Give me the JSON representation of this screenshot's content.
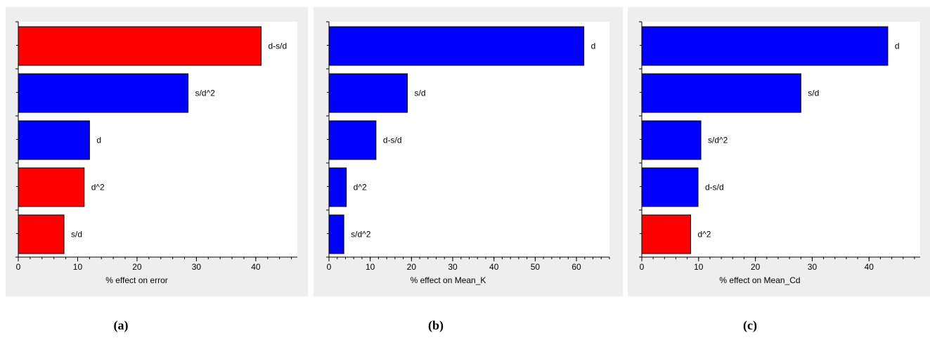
{
  "chart_data": [
    {
      "type": "bar",
      "orientation": "horizontal",
      "xlabel": "% effect on error",
      "xlim": [
        0,
        47
      ],
      "xticks": [
        0,
        10,
        20,
        30,
        40
      ],
      "categories": [
        "d-s/d",
        "s/d^2",
        "d",
        "d^2",
        "s/d"
      ],
      "values": [
        40.9,
        28.6,
        12.0,
        11.1,
        7.7
      ],
      "colors": [
        "#ff0000",
        "#0000ff",
        "#0000ff",
        "#ff0000",
        "#ff0000"
      ],
      "caption": "(a)"
    },
    {
      "type": "bar",
      "orientation": "horizontal",
      "xlabel": "% effect on Mean_K",
      "xlim": [
        0,
        68
      ],
      "xticks": [
        0,
        10,
        20,
        30,
        40,
        50,
        60
      ],
      "categories": [
        "d",
        "s/d",
        "d-s/d",
        "d^2",
        "s/d^2"
      ],
      "values": [
        61.8,
        19.0,
        11.4,
        4.2,
        3.6
      ],
      "colors": [
        "#0000ff",
        "#0000ff",
        "#0000ff",
        "#0000ff",
        "#0000ff"
      ],
      "caption": "(b)"
    },
    {
      "type": "bar",
      "orientation": "horizontal",
      "xlabel": "% effect on Mean_Cd",
      "xlim": [
        0,
        49
      ],
      "xticks": [
        0,
        10,
        20,
        30,
        40
      ],
      "categories": [
        "d",
        "s/d",
        "s/d^2",
        "d-s/d",
        "d^2"
      ],
      "values": [
        43.3,
        28.0,
        10.4,
        9.9,
        8.6
      ],
      "colors": [
        "#0000ff",
        "#0000ff",
        "#0000ff",
        "#0000ff",
        "#ff0000"
      ],
      "caption": "(c)"
    }
  ]
}
